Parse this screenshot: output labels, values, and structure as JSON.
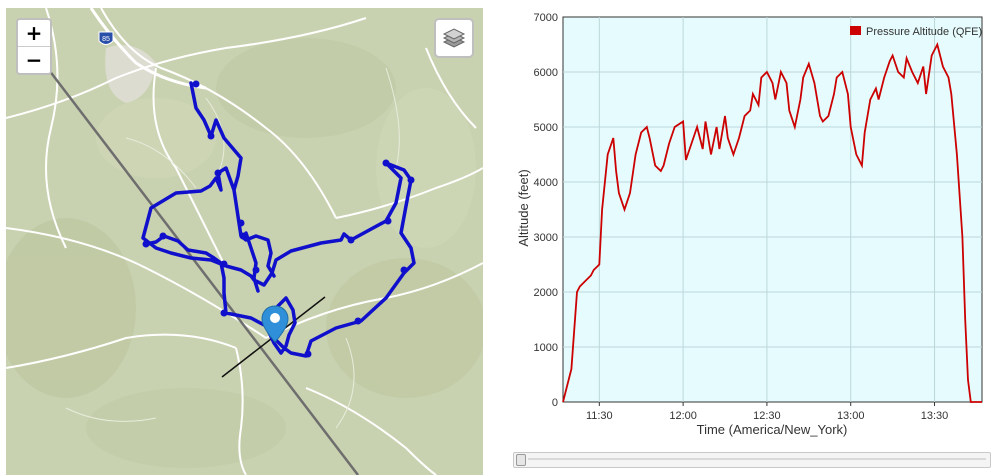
{
  "map": {
    "zoom_in_label": "+",
    "zoom_out_label": "−",
    "highway_shield": "85",
    "icons": {
      "layers": "layers-icon",
      "marker": "map-marker-icon"
    },
    "colors": {
      "track": "#1010cc",
      "land": "#c9d2b0",
      "road": "#ffffff",
      "route_line": "#6e6e6e"
    }
  },
  "chart_data": {
    "type": "line",
    "xlabel": "Time (America/New_York)",
    "ylabel": "Altitude (feet)",
    "ylim": [
      0,
      7000
    ],
    "yticks": [
      "0",
      "1000",
      "2000",
      "3000",
      "4000",
      "5000",
      "6000",
      "7000"
    ],
    "xticks": [
      "11:30",
      "12:00",
      "12:30",
      "13:00",
      "13:30"
    ],
    "xlim": [
      "11:17",
      "13:47"
    ],
    "grid": true,
    "legend_position": "top-right",
    "series": [
      {
        "name": "Pressure Altitude (QFE)",
        "color": "#cc0000",
        "x": [
          "11:17",
          "11:20",
          "11:21",
          "11:22",
          "11:23",
          "11:25",
          "11:27",
          "11:28",
          "11:30",
          "11:31",
          "11:33",
          "11:35",
          "11:36",
          "11:37",
          "11:39",
          "11:41",
          "11:43",
          "11:45",
          "11:47",
          "11:48",
          "11:50",
          "11:52",
          "11:53",
          "11:55",
          "11:57",
          "12:00",
          "12:01",
          "12:03",
          "12:05",
          "12:07",
          "12:08",
          "12:10",
          "12:12",
          "12:13",
          "12:15",
          "12:16",
          "12:18",
          "12:20",
          "12:22",
          "12:24",
          "12:25",
          "12:27",
          "12:28",
          "12:30",
          "12:32",
          "12:33",
          "12:35",
          "12:37",
          "12:38",
          "12:40",
          "12:42",
          "12:43",
          "12:45",
          "12:47",
          "12:49",
          "12:50",
          "12:52",
          "12:54",
          "12:55",
          "12:57",
          "12:59",
          "13:00",
          "13:02",
          "13:04",
          "13:05",
          "13:07",
          "13:09",
          "13:10",
          "13:12",
          "13:14",
          "13:15",
          "13:17",
          "13:19",
          "13:20",
          "13:22",
          "13:24",
          "13:26",
          "13:27",
          "13:29",
          "13:31",
          "13:33",
          "13:35",
          "13:36",
          "13:38",
          "13:40",
          "13:41",
          "13:42",
          "13:43",
          "13:44",
          "13:45",
          "13:46",
          "13:47"
        ],
        "y": [
          0,
          600,
          1300,
          2000,
          2100,
          2200,
          2300,
          2400,
          2500,
          3500,
          4500,
          4800,
          4200,
          3800,
          3500,
          3800,
          4500,
          4900,
          5000,
          4800,
          4300,
          4200,
          4300,
          4700,
          5000,
          5100,
          4400,
          4700,
          5000,
          4600,
          5100,
          4500,
          5000,
          4600,
          5200,
          4800,
          4500,
          4800,
          5200,
          5300,
          5600,
          5400,
          5900,
          6000,
          5800,
          5500,
          6000,
          5800,
          5300,
          5000,
          5500,
          5900,
          6150,
          5800,
          5200,
          5100,
          5200,
          5600,
          5900,
          6000,
          5600,
          5000,
          4500,
          4300,
          4900,
          5500,
          5700,
          5500,
          5900,
          6200,
          6300,
          6000,
          5900,
          6250,
          6000,
          5800,
          6100,
          5600,
          6300,
          6500,
          6100,
          5900,
          5600,
          4500,
          3000,
          1500,
          400,
          0,
          0,
          0,
          0,
          0
        ]
      }
    ]
  }
}
